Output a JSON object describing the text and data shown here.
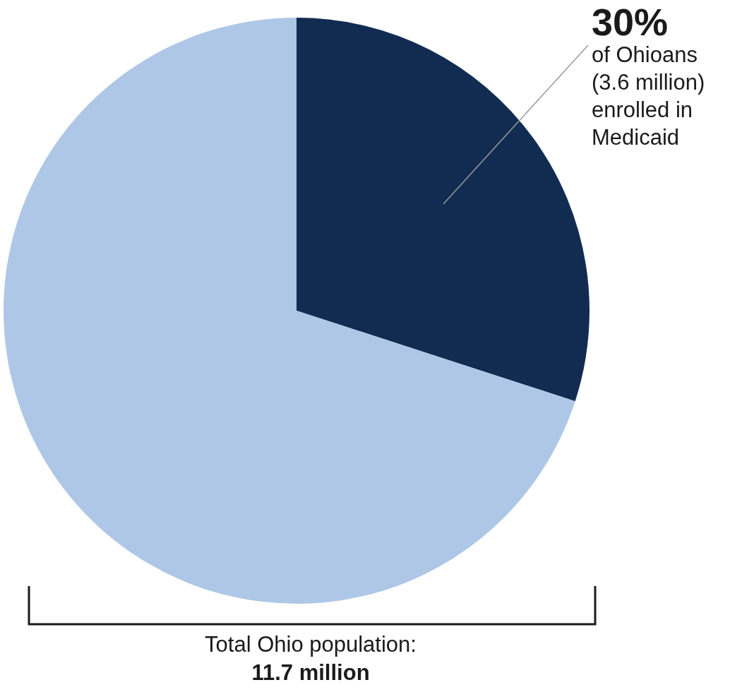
{
  "chart_data": {
    "type": "pie",
    "categories": [
      null,
      null
    ],
    "values": [
      30,
      70
    ],
    "colors": [
      "#122c51",
      "#aec7e6"
    ],
    "value_labels": [
      "30%",
      null
    ],
    "legend": false,
    "annotations": [
      "of Ohioans (3.6 million) enrolled in Medicaid",
      "Total Ohio population:",
      "11.7 million"
    ]
  }
}
